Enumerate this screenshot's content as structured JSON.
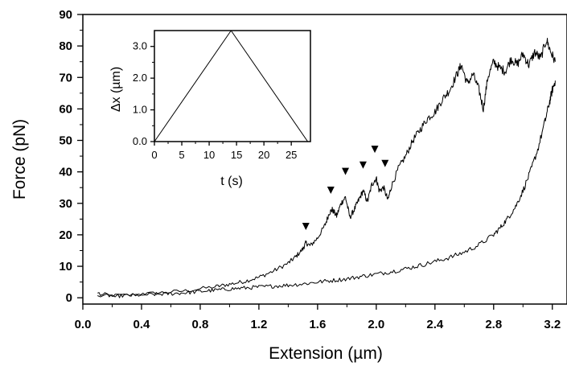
{
  "chart_data": [
    {
      "type": "line",
      "xlabel": "Extension (µm)",
      "ylabel": "Force (pN)",
      "xlim": [
        0.0,
        3.3
      ],
      "ylim": [
        -2,
        90
      ],
      "x_ticks": [
        0.0,
        0.4,
        0.8,
        1.2,
        1.6,
        2.0,
        2.4,
        2.8,
        3.2
      ],
      "x_tick_labels": [
        "0.0",
        "0.4",
        "0.8",
        "1.2",
        "1.6",
        "2.0",
        "2.4",
        "2.8",
        "3.2"
      ],
      "y_ticks": [
        0,
        10,
        20,
        30,
        40,
        50,
        60,
        70,
        80,
        90
      ],
      "y_tick_labels": [
        "0",
        "10",
        "20",
        "30",
        "40",
        "50",
        "60",
        "70",
        "80",
        "90"
      ],
      "grid": false,
      "legend": "none",
      "series": [
        {
          "x": [
            0.1,
            0.3,
            0.5,
            0.7,
            0.9,
            1.0,
            1.1,
            1.2,
            1.3,
            1.4,
            1.45,
            1.5,
            1.52,
            1.55,
            1.6,
            1.65,
            1.68,
            1.7,
            1.73,
            1.76,
            1.79,
            1.82,
            1.85,
            1.88,
            1.91,
            1.94,
            1.97,
            2.0,
            2.02,
            2.05,
            2.08,
            2.1,
            2.15,
            2.2,
            2.25,
            2.3,
            2.35,
            2.4,
            2.45,
            2.5,
            2.55,
            2.58,
            2.62,
            2.66,
            2.7,
            2.73,
            2.76,
            2.8,
            2.84,
            2.88,
            2.92,
            2.96,
            3.0,
            3.04,
            3.08,
            3.12,
            3.16,
            3.19,
            3.22
          ],
          "y": [
            0.5,
            0.8,
            1.5,
            2.2,
            3.5,
            4.3,
            5.2,
            6.5,
            8.5,
            11.0,
            13.0,
            15.5,
            17.5,
            16.5,
            19.0,
            23.0,
            27.0,
            28.0,
            26.0,
            30.0,
            32.0,
            25.5,
            28.0,
            31.0,
            34.0,
            30.5,
            36.0,
            38.0,
            34.0,
            35.0,
            31.0,
            35.0,
            41.0,
            45.0,
            50.0,
            53.5,
            57.0,
            59.0,
            63.0,
            66.0,
            71.0,
            74.0,
            68.0,
            71.0,
            66.0,
            60.0,
            70.0,
            75.0,
            73.0,
            72.0,
            76.0,
            74.0,
            77.5,
            74.0,
            78.0,
            76.0,
            82.0,
            78.0,
            75.0
          ]
        },
        {
          "x": [
            0.1,
            0.2,
            0.3,
            0.4,
            0.5,
            0.6,
            0.7,
            0.8,
            0.9,
            1.0,
            1.1,
            1.2,
            1.3,
            1.4,
            1.5,
            1.6,
            1.7,
            1.8,
            1.9,
            2.0,
            2.1,
            2.2,
            2.3,
            2.4,
            2.5,
            2.6,
            2.7,
            2.8,
            2.85,
            2.9,
            2.95,
            3.0,
            3.05,
            3.1,
            3.15,
            3.18,
            3.2,
            3.22
          ],
          "y": [
            1.5,
            0.5,
            0.7,
            0.9,
            1.1,
            1.3,
            1.6,
            2.0,
            2.4,
            2.8,
            3.1,
            3.4,
            3.7,
            4.0,
            4.4,
            5.0,
            5.5,
            6.0,
            6.8,
            7.5,
            8.3,
            9.2,
            10.3,
            11.5,
            12.8,
            14.5,
            16.8,
            20.0,
            22.5,
            25.5,
            29.0,
            34.0,
            40.0,
            47.0,
            56.0,
            62.0,
            66.0,
            69.0
          ]
        }
      ],
      "annotations": [
        {
          "type": "arrowhead",
          "x": 1.52,
          "y": 21.5
        },
        {
          "type": "arrowhead",
          "x": 1.69,
          "y": 33.0
        },
        {
          "type": "arrowhead",
          "x": 1.79,
          "y": 39.0
        },
        {
          "type": "arrowhead",
          "x": 1.91,
          "y": 41.0
        },
        {
          "type": "arrowhead",
          "x": 1.99,
          "y": 46.0
        },
        {
          "type": "arrowhead",
          "x": 2.06,
          "y": 41.5
        }
      ]
    },
    {
      "type": "line",
      "xlabel": "t (s)",
      "ylabel": "Δx (µm)",
      "xlim": [
        0,
        28.5
      ],
      "ylim": [
        0.0,
        3.5
      ],
      "x_ticks": [
        0,
        5,
        10,
        15,
        20,
        25
      ],
      "x_tick_labels": [
        "0",
        "5",
        "10",
        "15",
        "20",
        "25"
      ],
      "y_ticks": [
        0.0,
        1.0,
        2.0,
        3.0
      ],
      "y_tick_labels": [
        "0.0",
        "1.0",
        "2.0",
        "3.0"
      ],
      "grid": false,
      "legend": "none",
      "series": [
        {
          "x": [
            0,
            14,
            28
          ],
          "y": [
            0.0,
            3.5,
            0.0
          ]
        }
      ]
    }
  ]
}
